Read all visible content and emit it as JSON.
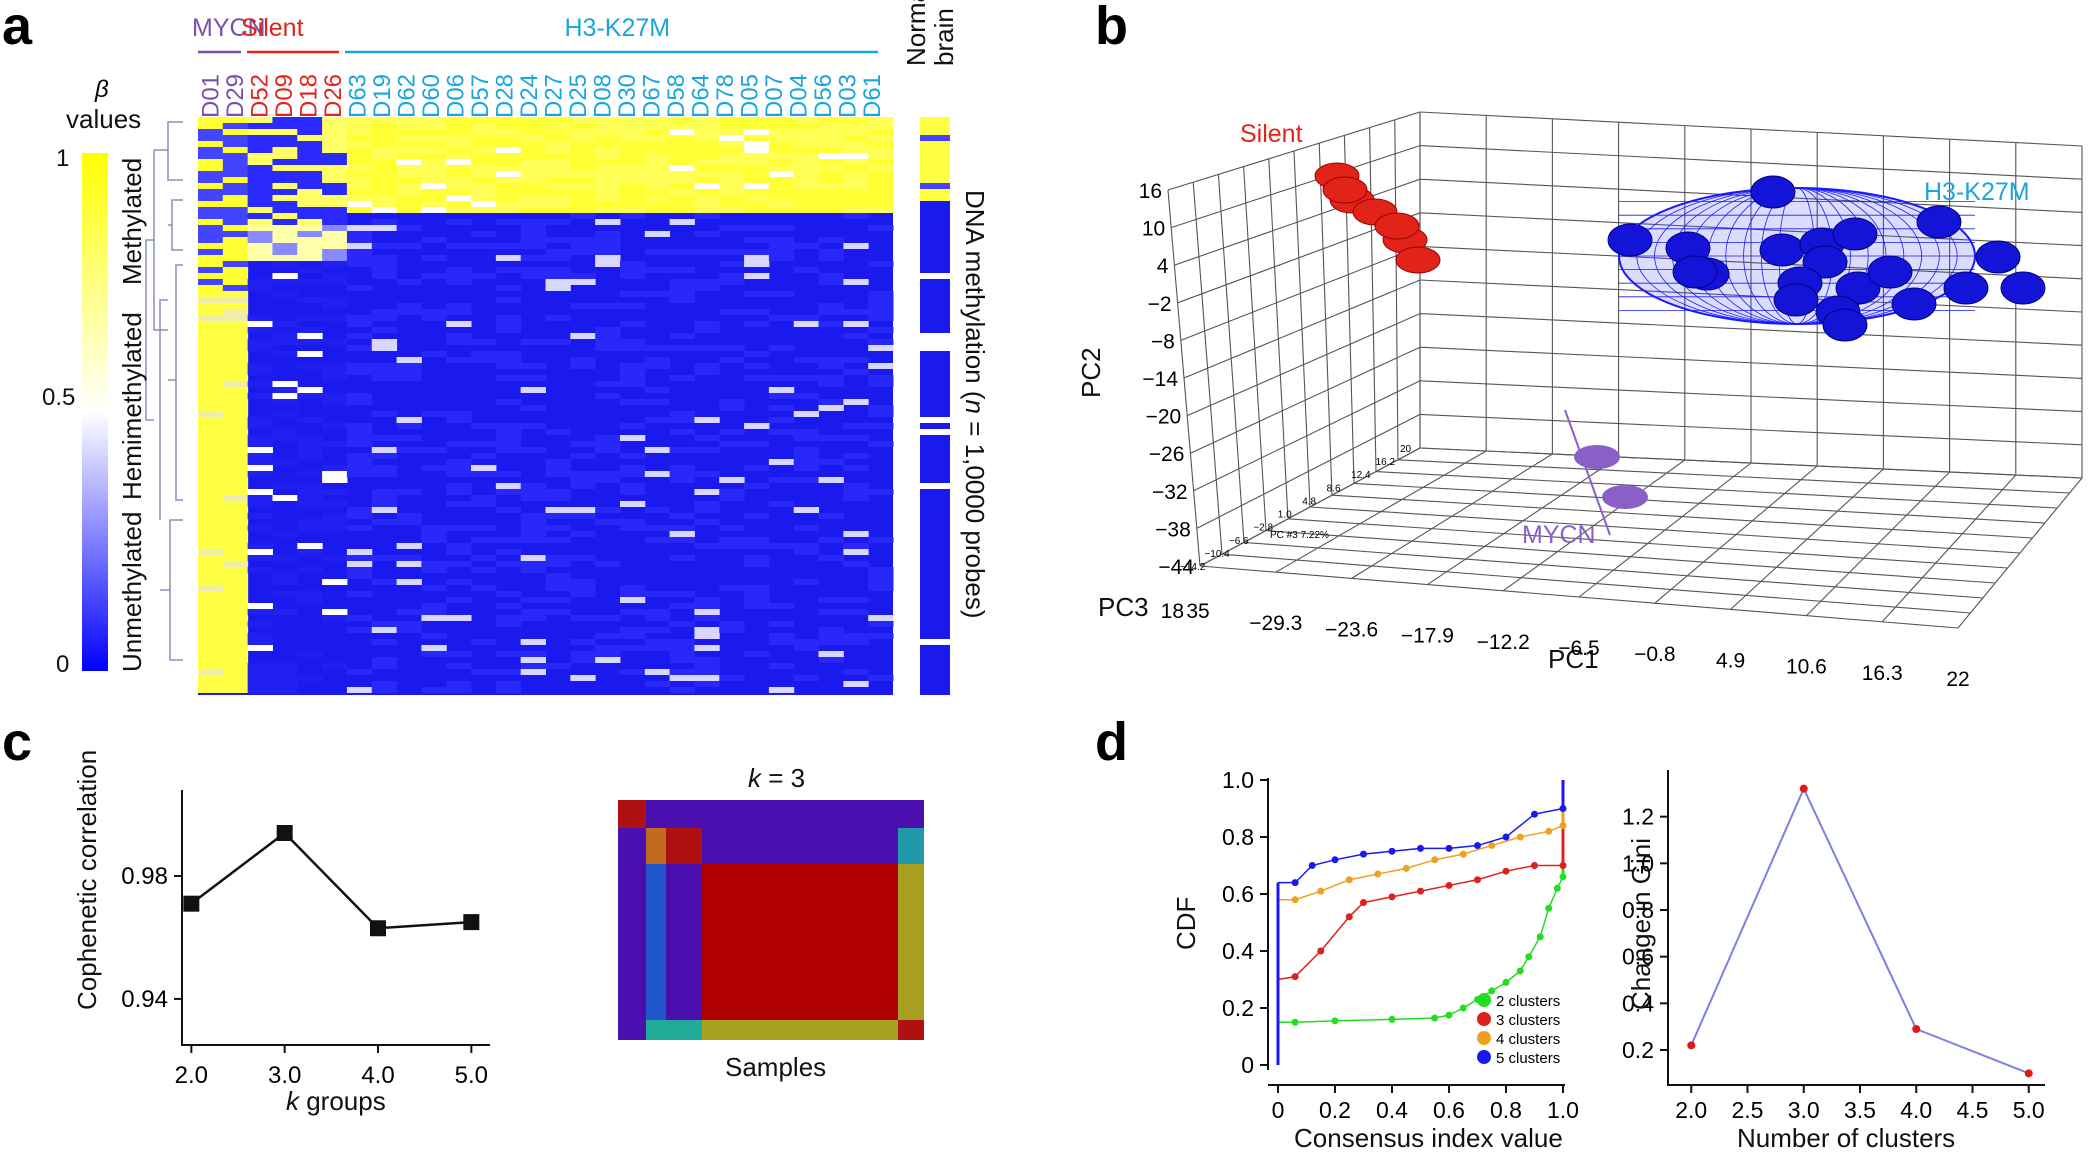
{
  "panels": {
    "a": "a",
    "b": "b",
    "c": "c",
    "d": "d"
  },
  "heatmap": {
    "groups": [
      {
        "name": "MYCN",
        "color": "#7b4fa8",
        "samples": [
          "D01",
          "D29"
        ]
      },
      {
        "name": "Silent",
        "color": "#e2231a",
        "samples": [
          "D52",
          "D09",
          "D18",
          "D26"
        ]
      },
      {
        "name": "H3-K27M",
        "color": "#1aa6dc",
        "samples": [
          "D63",
          "D19",
          "D62",
          "D60",
          "D06",
          "D57",
          "D28",
          "D24",
          "D27",
          "D25",
          "D08",
          "D30",
          "D67",
          "D58",
          "D64",
          "D78",
          "D05",
          "D07",
          "D04",
          "D56",
          "D03",
          "D61"
        ]
      }
    ],
    "normal_label": [
      "Normal",
      "brain"
    ],
    "beta_label": "β",
    "values_label": "values",
    "scale_ticks": [
      "1",
      "0.5",
      "0"
    ],
    "scale_states": [
      "Methylated",
      "Hemimethylated",
      "Unmethylated"
    ],
    "side_label_pre": "DNA methylation (",
    "side_label_n": "n",
    "side_label_post": " = 1,0000 probes)"
  },
  "pca": {
    "axis_pc2": "PC2",
    "axis_pc1": "PC1",
    "axis_pc3": "PC3",
    "pc2_ticks": [
      "16",
      "10",
      "4",
      "−2",
      "−8",
      "−14",
      "−20",
      "−26",
      "−32",
      "−38",
      "−44"
    ],
    "pc1_ticks": [
      "35",
      "−29.3",
      "−23.6",
      "−17.9",
      "−12.2",
      "−6.5",
      "−0.8",
      "4.9",
      "10.6",
      "16.3",
      "22"
    ],
    "pc3_first_tick": "18",
    "pc3_small_ticks": [
      "20",
      "16.2",
      "12.4",
      "8.6",
      "4.8",
      "1.0",
      "−2.8",
      "−6.6",
      "−10.4",
      "−14.2"
    ],
    "pc3_inner_label": "PC #3 7.22%",
    "cluster_silent": "Silent",
    "cluster_h3": "H3-K27M",
    "cluster_mycn": "MYCN",
    "colors": {
      "silent": "#e2231a",
      "h3": "#1a1aff",
      "mycn": "#8a5fc7"
    }
  },
  "chart_data": [
    {
      "type": "line",
      "title": "",
      "x": [
        2.0,
        3.0,
        4.0,
        5.0
      ],
      "values": [
        0.971,
        0.994,
        0.963,
        0.965
      ],
      "xlabel_k": "k",
      "xlabel_rest": " groups",
      "ylabel": "Cophenetic correlation",
      "xticks": [
        "2.0",
        "3.0",
        "4.0",
        "5.0"
      ],
      "yticks": [
        0.94,
        0.98
      ],
      "ytick_labels": [
        "0.94",
        "0.98"
      ],
      "xlim": [
        1.9,
        5.2
      ],
      "ylim": [
        0.925,
        1.008
      ]
    },
    {
      "type": "heatmap",
      "title_k": "k",
      "title_rest": " = 3",
      "xlabel": "Samples"
    },
    {
      "type": "line",
      "xlabel": "Consensus index value",
      "ylabel": "CDF",
      "xticks": [
        "0",
        "0.2",
        "0.4",
        "0.6",
        "0.8",
        "1.0"
      ],
      "yticks": [
        "0",
        "0.2",
        "0.4",
        "0.6",
        "0.8",
        "1.0"
      ],
      "xlim": [
        0,
        1
      ],
      "ylim": [
        0,
        1
      ],
      "series": [
        {
          "name": "2 clusters",
          "color": "#22dd22",
          "x": [
            0,
            0.06,
            0.2,
            0.4,
            0.55,
            0.6,
            0.65,
            0.7,
            0.75,
            0.8,
            0.85,
            0.88,
            0.92,
            0.95,
            0.98,
            1.0
          ],
          "y": [
            0.15,
            0.15,
            0.155,
            0.16,
            0.165,
            0.175,
            0.2,
            0.23,
            0.26,
            0.29,
            0.33,
            0.38,
            0.45,
            0.55,
            0.62,
            0.66
          ]
        },
        {
          "name": "3 clusters",
          "color": "#e0201c",
          "x": [
            0,
            0.06,
            0.15,
            0.25,
            0.3,
            0.4,
            0.5,
            0.6,
            0.7,
            0.8,
            0.9,
            1.0
          ],
          "y": [
            0.3,
            0.31,
            0.4,
            0.52,
            0.57,
            0.59,
            0.61,
            0.63,
            0.65,
            0.68,
            0.7,
            0.7
          ]
        },
        {
          "name": "4 clusters",
          "color": "#f0a020",
          "x": [
            0,
            0.06,
            0.15,
            0.25,
            0.35,
            0.45,
            0.55,
            0.65,
            0.75,
            0.85,
            0.95,
            1.0
          ],
          "y": [
            0.58,
            0.58,
            0.61,
            0.65,
            0.67,
            0.69,
            0.72,
            0.74,
            0.77,
            0.8,
            0.82,
            0.84
          ]
        },
        {
          "name": "5 clusters",
          "color": "#1a1aee",
          "x": [
            0,
            0.06,
            0.12,
            0.2,
            0.3,
            0.4,
            0.5,
            0.6,
            0.7,
            0.8,
            0.9,
            1.0
          ],
          "y": [
            0.64,
            0.64,
            0.7,
            0.72,
            0.74,
            0.75,
            0.76,
            0.76,
            0.77,
            0.8,
            0.88,
            0.9
          ]
        }
      ]
    },
    {
      "type": "line",
      "x": [
        2.0,
        3.0,
        4.0,
        5.0
      ],
      "values": [
        0.22,
        1.32,
        0.29,
        0.1
      ],
      "xlabel": "Number of clusters",
      "ylabel": "Change in Gini",
      "xticks": [
        "2.0",
        "2.5",
        "3.0",
        "3.5",
        "4.0",
        "4.5",
        "5.0"
      ],
      "yticks": [
        "0.2",
        "0.4",
        "0.6",
        "0.8",
        "1.0",
        "1.2"
      ],
      "xlim": [
        1.9,
        5.1
      ],
      "ylim": [
        0.05,
        1.4
      ]
    }
  ]
}
